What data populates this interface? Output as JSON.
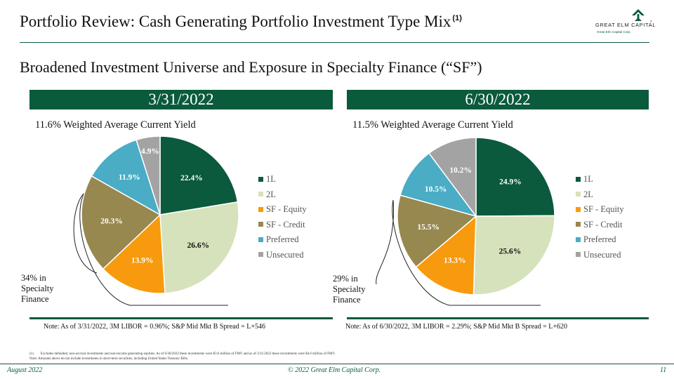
{
  "header": {
    "title": "Portfolio Review: Cash Generating Portfolio Investment Type Mix",
    "title_footnote": "(1)",
    "subtitle": "Broadened Investment Universe and Exposure in Specialty Finance (“SF”)"
  },
  "logo": {
    "name": "GREAT ELM CAPITAL",
    "tagline": "Great Elm Capital Corp.",
    "trademark": "®"
  },
  "colors": {
    "accent": "#0a5a3c",
    "1L": "#0b5a3e",
    "2L": "#d6e2bb",
    "SF - Equity": "#f79a0d",
    "SF - Credit": "#978850",
    "Preferred": "#4aacc5",
    "Unsecured": "#a3a3a3"
  },
  "periods": [
    {
      "date": "3/31/2022",
      "yield_text": "11.6% Weighted Average Current Yield",
      "callout": [
        "34% in",
        "Specialty",
        "Finance"
      ],
      "note": "Note: As of 3/31/2022, 3M LIBOR = 0.96%; S&P Mid Mkt B Spread = L+546"
    },
    {
      "date": "6/30/2022",
      "yield_text": "11.5% Weighted Average Current Yield",
      "callout": [
        "29% in",
        "Specialty",
        "Finance"
      ],
      "note": "Note: As of 6/30/2022, 3M LIBOR = 2.29%; S&P Mid Mkt B Spread = L+620"
    }
  ],
  "chart_data": [
    {
      "type": "pie",
      "categories": [
        "1L",
        "2L",
        "SF - Equity",
        "SF - Credit",
        "Preferred",
        "Unsecured"
      ],
      "values": [
        22.4,
        26.6,
        13.9,
        20.3,
        11.9,
        4.9
      ],
      "labels": [
        "22.4%",
        "26.6%",
        "13.9%",
        "20.3%",
        "11.9%",
        "4.9%"
      ],
      "legend": "right"
    },
    {
      "type": "pie",
      "categories": [
        "1L",
        "2L",
        "SF - Equity",
        "SF - Credit",
        "Preferred",
        "Unsecured"
      ],
      "values": [
        24.9,
        25.6,
        13.3,
        15.5,
        10.5,
        10.2
      ],
      "labels": [
        "24.9%",
        "25.6%",
        "13.3%",
        "15.5%",
        "10.5%",
        "10.2%"
      ],
      "legend": "right"
    }
  ],
  "footnotes": [
    "(1)  Excludes defaulted, non-accrual investments and non-income generating equities. As of 6/30/2022 these investments were $3.6 million of FMV and as of 3/31/2022 these investments were $4.6 million of FMV.",
    "Note: Amounts above do not include investments in short-term securities, including United States Treasury Bills."
  ],
  "footer": {
    "date": "August 2022",
    "copyright": "© 2022 Great Elm Capital Corp.",
    "page": "11"
  }
}
